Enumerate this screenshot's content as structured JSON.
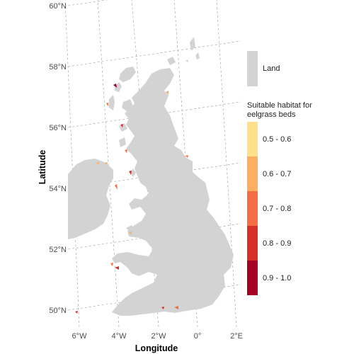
{
  "map": {
    "axes": {
      "xlabel": "Longitude",
      "ylabel": "Latitude",
      "lon_ticks": [
        "6°W",
        "4°W",
        "2°W",
        "0°",
        "2°E"
      ],
      "lat_ticks": [
        "50°N",
        "52°N",
        "54°N",
        "56°N",
        "58°N",
        "60°N"
      ]
    },
    "legend": {
      "land_label": "Land",
      "land_color": "#d3d3d3",
      "habitat_title": "Suitable habitat for eelgrass beds",
      "classes": [
        {
          "label": "0.5 - 0.6",
          "color": "#ffe08a"
        },
        {
          "label": "0.6 - 0.7",
          "color": "#fdae61"
        },
        {
          "label": "0.7 - 0.8",
          "color": "#f46d43"
        },
        {
          "label": "0.8 - 0.9",
          "color": "#d73027"
        },
        {
          "label": "0.9 - 1.0",
          "color": "#a50026"
        }
      ]
    }
  }
}
